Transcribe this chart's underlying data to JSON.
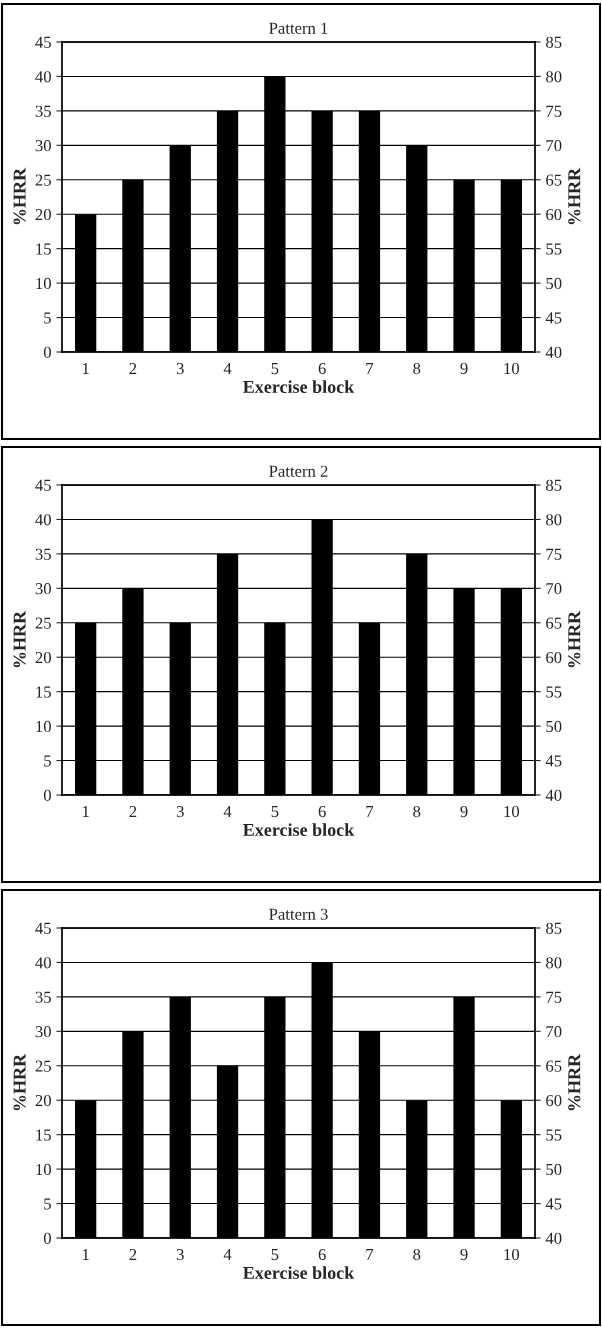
{
  "chart_data": [
    {
      "type": "bar",
      "title": "Pattern 1",
      "xlabel": "Exercise block",
      "ylabel": "%HRR",
      "y2label": "%HRR",
      "categories": [
        "1",
        "2",
        "3",
        "4",
        "5",
        "6",
        "7",
        "8",
        "9",
        "10"
      ],
      "color": "#000000",
      "values": [
        20,
        25,
        30,
        35,
        40,
        35,
        35,
        30,
        25,
        25
      ],
      "ylim": [
        0,
        45
      ],
      "yticks": [
        0,
        5,
        10,
        15,
        20,
        25,
        30,
        35,
        40,
        45
      ],
      "y2lim": [
        40,
        85
      ],
      "y2ticks": [
        40,
        45,
        50,
        55,
        60,
        65,
        70,
        75,
        80,
        85
      ],
      "grid": "y"
    },
    {
      "type": "bar",
      "title": "Pattern 2",
      "xlabel": "Exercise block",
      "ylabel": "%HRR",
      "y2label": "%HRR",
      "categories": [
        "1",
        "2",
        "3",
        "4",
        "5",
        "6",
        "7",
        "8",
        "9",
        "10"
      ],
      "color": "#000000",
      "values": [
        25,
        30,
        25,
        35,
        25,
        40,
        25,
        35,
        30,
        30
      ],
      "ylim": [
        0,
        45
      ],
      "yticks": [
        0,
        5,
        10,
        15,
        20,
        25,
        30,
        35,
        40,
        45
      ],
      "y2lim": [
        40,
        85
      ],
      "y2ticks": [
        40,
        45,
        50,
        55,
        60,
        65,
        70,
        75,
        80,
        85
      ],
      "grid": "y"
    },
    {
      "type": "bar",
      "title": "Pattern 3",
      "xlabel": "Exercise block",
      "ylabel": "%HRR",
      "y2label": "%HRR",
      "categories": [
        "1",
        "2",
        "3",
        "4",
        "5",
        "6",
        "7",
        "8",
        "9",
        "10"
      ],
      "color": "#000000",
      "values": [
        20,
        30,
        35,
        25,
        35,
        40,
        30,
        20,
        35,
        20
      ],
      "ylim": [
        0,
        45
      ],
      "yticks": [
        0,
        5,
        10,
        15,
        20,
        25,
        30,
        35,
        40,
        45
      ],
      "y2lim": [
        40,
        85
      ],
      "y2ticks": [
        40,
        45,
        50,
        55,
        60,
        65,
        70,
        75,
        80,
        85
      ],
      "grid": "y"
    }
  ]
}
